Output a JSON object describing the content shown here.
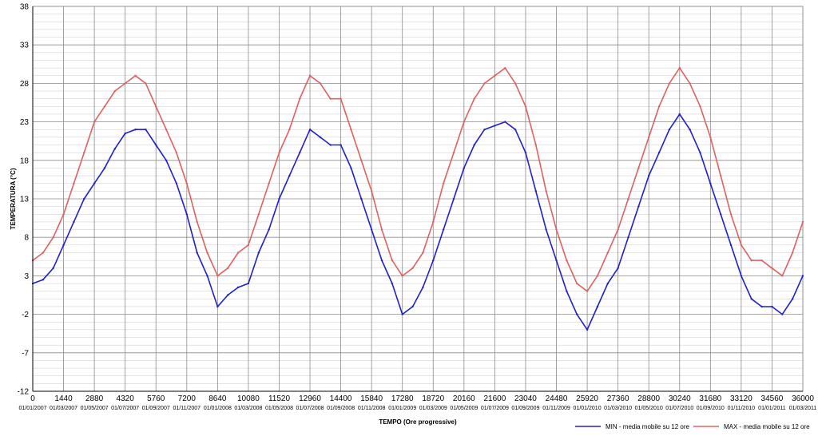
{
  "chart_data": {
    "type": "line",
    "title": "",
    "xlabel": "TEMPO (Ore progressive)",
    "ylabel": "TEMPERATURA (°C)",
    "xlim": [
      0,
      36000
    ],
    "ylim": [
      -12,
      38
    ],
    "x_ticks": [
      0,
      1440,
      2880,
      4320,
      5760,
      7200,
      8640,
      10080,
      11520,
      12960,
      14400,
      15840,
      17280,
      18720,
      20160,
      21600,
      23040,
      24480,
      25920,
      27360,
      28800,
      30240,
      31680,
      33120,
      34560,
      36000
    ],
    "x_tick_dates": [
      "01/01/2007",
      "01/03/2007",
      "01/05/2007",
      "01/07/2007",
      "01/09/2007",
      "01/11/2007",
      "01/01/2008",
      "01/03/2008",
      "01/05/2008",
      "01/07/2008",
      "01/09/2008",
      "01/11/2008",
      "01/01/2009",
      "01/03/2009",
      "01/05/2009",
      "01/07/2009",
      "01/09/2009",
      "01/11/2009",
      "01/01/2010",
      "01/03/2010",
      "01/05/2010",
      "01/07/2010",
      "01/09/2010",
      "01/11/2010",
      "01/01/2011",
      "01/03/2011"
    ],
    "y_ticks": [
      -12,
      -7,
      -2,
      3,
      8,
      13,
      18,
      23,
      28,
      33,
      38
    ],
    "grid": true,
    "legend_position": "bottom-right",
    "series": [
      {
        "name": "MIN - media mobile su 12 ore",
        "color": "#1f1fd0",
        "x": [
          0,
          480,
          960,
          1440,
          1920,
          2400,
          2880,
          3360,
          3840,
          4320,
          4800,
          5280,
          5760,
          6240,
          6720,
          7200,
          7680,
          8160,
          8640,
          9120,
          9600,
          10080,
          10560,
          11040,
          11520,
          12000,
          12480,
          12960,
          13440,
          13920,
          14400,
          14880,
          15360,
          15840,
          16320,
          16800,
          17280,
          17760,
          18240,
          18720,
          19200,
          19680,
          20160,
          20640,
          21120,
          21600,
          22080,
          22560,
          23040,
          23520,
          24000,
          24480,
          24960,
          25440,
          25920,
          26400,
          26880,
          27360,
          27840,
          28320,
          28800,
          29280,
          29760,
          30240,
          30720,
          31200,
          31680,
          32160,
          32640,
          33120,
          33600,
          34080,
          34560,
          35040,
          35520,
          36000
        ],
        "y": [
          2,
          2.5,
          4,
          7,
          10,
          13,
          15,
          17,
          19.5,
          21.5,
          22,
          22,
          20,
          18,
          15,
          11,
          6,
          3,
          -1,
          0.5,
          1.5,
          2,
          6,
          9,
          13,
          16,
          19,
          22,
          21,
          20,
          20,
          17,
          13,
          9,
          5,
          2,
          -2,
          -1,
          1.5,
          5,
          9,
          13,
          17,
          20,
          22,
          22.5,
          23,
          22,
          19,
          14,
          9,
          5,
          1,
          -2,
          -4,
          -1,
          2,
          4,
          8,
          12,
          16,
          19,
          22,
          24,
          22,
          19,
          15,
          11,
          7,
          3,
          0,
          -1,
          -1,
          -2,
          0,
          3
        ]
      },
      {
        "name": "MAX - media mobile su 12 ore",
        "color": "#e06060",
        "x": [
          0,
          480,
          960,
          1440,
          1920,
          2400,
          2880,
          3360,
          3840,
          4320,
          4800,
          5280,
          5760,
          6240,
          6720,
          7200,
          7680,
          8160,
          8640,
          9120,
          9600,
          10080,
          10560,
          11040,
          11520,
          12000,
          12480,
          12960,
          13440,
          13920,
          14400,
          14880,
          15360,
          15840,
          16320,
          16800,
          17280,
          17760,
          18240,
          18720,
          19200,
          19680,
          20160,
          20640,
          21120,
          21600,
          22080,
          22560,
          23040,
          23520,
          24000,
          24480,
          24960,
          25440,
          25920,
          26400,
          26880,
          27360,
          27840,
          28320,
          28800,
          29280,
          29760,
          30240,
          30720,
          31200,
          31680,
          32160,
          32640,
          33120,
          33600,
          34080,
          34560,
          35040,
          35520,
          36000
        ],
        "y": [
          5,
          6,
          8,
          11,
          15,
          19,
          23,
          25,
          27,
          28,
          29,
          28,
          25,
          22,
          19,
          15,
          10,
          6,
          3,
          4,
          6,
          7,
          11,
          15,
          19,
          22,
          26,
          29,
          28,
          26,
          26,
          22,
          18,
          14,
          9,
          5,
          3,
          4,
          6,
          10,
          15,
          19,
          23,
          26,
          28,
          29,
          30,
          28,
          25,
          20,
          14,
          9,
          5,
          2,
          1,
          3,
          6,
          9,
          13,
          17,
          21,
          25,
          28,
          30,
          28,
          25,
          21,
          16,
          11,
          7,
          5,
          5,
          4,
          3,
          6,
          10
        ]
      }
    ]
  },
  "legend": {
    "min_label": "MIN - media mobile su 12 ore",
    "max_label": "MAX - media mobile su 12 ore"
  }
}
